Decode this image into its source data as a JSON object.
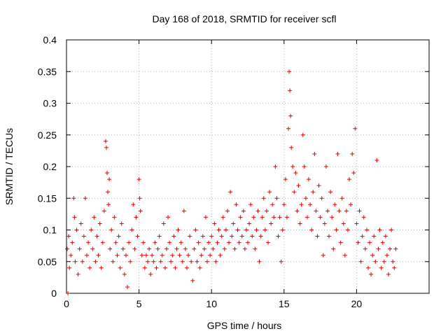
{
  "chart_data": {
    "type": "scatter",
    "title": "Day 168 of 2018, SRMTID for receiver scfl",
    "xlabel": "GPS time / hours",
    "ylabel": "SRMTID / TECUs",
    "xlim": [
      0,
      25
    ],
    "ylim": [
      0,
      0.4
    ],
    "xticks": [
      0,
      5,
      10,
      15,
      20
    ],
    "xtick_labels": [
      "0",
      "5",
      "10",
      "15",
      "20"
    ],
    "yticks": [
      0,
      0.05,
      0.1,
      0.15,
      0.2,
      0.25,
      0.3,
      0.35,
      0.4
    ],
    "ytick_labels": [
      "0",
      "0.05",
      "0.1",
      "0.15",
      "0.2",
      "0.25",
      "0.3",
      "0.35",
      "0.4"
    ],
    "grid": true,
    "marker": "+",
    "color": "#e00000",
    "series": [
      {
        "name": "SRMTID",
        "points": [
          [
            0.05,
            0.07
          ],
          [
            0.1,
            0.0
          ],
          [
            0.15,
            0.09
          ],
          [
            0.2,
            0.04
          ],
          [
            0.3,
            0.06
          ],
          [
            0.4,
            0.08
          ],
          [
            0.5,
            0.15
          ],
          [
            0.55,
            0.12
          ],
          [
            0.6,
            0.05
          ],
          [
            0.7,
            0.1
          ],
          [
            0.8,
            0.03
          ],
          [
            0.9,
            0.07
          ],
          [
            1.0,
            0.11
          ],
          [
            1.1,
            0.05
          ],
          [
            1.2,
            0.09
          ],
          [
            1.3,
            0.15
          ],
          [
            1.4,
            0.06
          ],
          [
            1.5,
            0.08
          ],
          [
            1.6,
            0.04
          ],
          [
            1.7,
            0.1
          ],
          [
            1.8,
            0.07
          ],
          [
            1.9,
            0.12
          ],
          [
            2.0,
            0.05
          ],
          [
            2.1,
            0.09
          ],
          [
            2.2,
            0.06
          ],
          [
            2.3,
            0.11
          ],
          [
            2.4,
            0.04
          ],
          [
            2.5,
            0.08
          ],
          [
            2.6,
            0.13
          ],
          [
            2.7,
            0.24
          ],
          [
            2.75,
            0.23
          ],
          [
            2.8,
            0.19
          ],
          [
            2.85,
            0.16
          ],
          [
            2.9,
            0.14
          ],
          [
            2.95,
            0.18
          ],
          [
            3.0,
            0.07
          ],
          [
            3.1,
            0.1
          ],
          [
            3.2,
            0.05
          ],
          [
            3.3,
            0.12
          ],
          [
            3.4,
            0.08
          ],
          [
            3.5,
            0.06
          ],
          [
            3.6,
            0.09
          ],
          [
            3.7,
            0.04
          ],
          [
            3.8,
            0.11
          ],
          [
            3.9,
            0.07
          ],
          [
            4.0,
            0.03
          ],
          [
            4.1,
            0.06
          ],
          [
            4.2,
            0.01
          ],
          [
            4.3,
            0.08
          ],
          [
            4.4,
            0.05
          ],
          [
            4.5,
            0.1
          ],
          [
            4.6,
            0.14
          ],
          [
            4.7,
            0.07
          ],
          [
            4.8,
            0.12
          ],
          [
            4.9,
            0.09
          ],
          [
            5.0,
            0.18
          ],
          [
            5.05,
            0.15
          ],
          [
            5.1,
            0.13
          ],
          [
            5.2,
            0.06
          ],
          [
            5.3,
            0.08
          ],
          [
            5.4,
            0.04
          ],
          [
            5.5,
            0.06
          ],
          [
            5.6,
            0.05
          ],
          [
            5.7,
            0.07
          ],
          [
            5.8,
            0.03
          ],
          [
            5.9,
            0.06
          ],
          [
            6.0,
            0.05
          ],
          [
            6.1,
            0.08
          ],
          [
            6.2,
            0.04
          ],
          [
            6.3,
            0.07
          ],
          [
            6.4,
            0.09
          ],
          [
            6.5,
            0.05
          ],
          [
            6.6,
            0.06
          ],
          [
            6.7,
            0.11
          ],
          [
            6.8,
            0.04
          ],
          [
            6.9,
            0.07
          ],
          [
            7.0,
            0.12
          ],
          [
            7.1,
            0.08
          ],
          [
            7.2,
            0.05
          ],
          [
            7.3,
            0.06
          ],
          [
            7.4,
            0.09
          ],
          [
            7.5,
            0.04
          ],
          [
            7.6,
            0.07
          ],
          [
            7.7,
            0.1
          ],
          [
            7.8,
            0.06
          ],
          [
            7.9,
            0.08
          ],
          [
            8.0,
            0.05
          ],
          [
            8.1,
            0.13
          ],
          [
            8.2,
            0.07
          ],
          [
            8.3,
            0.04
          ],
          [
            8.4,
            0.06
          ],
          [
            8.5,
            0.09
          ],
          [
            8.6,
            0.05
          ],
          [
            8.7,
            0.02
          ],
          [
            8.8,
            0.07
          ],
          [
            8.9,
            0.1
          ],
          [
            9.0,
            0.05
          ],
          [
            9.1,
            0.08
          ],
          [
            9.2,
            0.04
          ],
          [
            9.3,
            0.06
          ],
          [
            9.4,
            0.09
          ],
          [
            9.5,
            0.07
          ],
          [
            9.6,
            0.12
          ],
          [
            9.7,
            0.05
          ],
          [
            9.8,
            0.08
          ],
          [
            9.9,
            0.06
          ],
          [
            10.0,
            0.09
          ],
          [
            10.1,
            0.07
          ],
          [
            10.2,
            0.11
          ],
          [
            10.3,
            0.05
          ],
          [
            10.4,
            0.08
          ],
          [
            10.5,
            0.1
          ],
          [
            10.6,
            0.06
          ],
          [
            10.7,
            0.09
          ],
          [
            10.8,
            0.12
          ],
          [
            10.9,
            0.07
          ],
          [
            11.0,
            0.1
          ],
          [
            11.1,
            0.13
          ],
          [
            11.2,
            0.08
          ],
          [
            11.3,
            0.16
          ],
          [
            11.4,
            0.09
          ],
          [
            11.5,
            0.11
          ],
          [
            11.6,
            0.07
          ],
          [
            11.7,
            0.14
          ],
          [
            11.8,
            0.1
          ],
          [
            11.9,
            0.08
          ],
          [
            12.0,
            0.12
          ],
          [
            12.1,
            0.09
          ],
          [
            12.2,
            0.13
          ],
          [
            12.3,
            0.07
          ],
          [
            12.4,
            0.1
          ],
          [
            12.5,
            0.08
          ],
          [
            12.6,
            0.11
          ],
          [
            12.7,
            0.14
          ],
          [
            12.8,
            0.09
          ],
          [
            12.9,
            0.12
          ],
          [
            13.0,
            0.07
          ],
          [
            13.1,
            0.1
          ],
          [
            13.2,
            0.13
          ],
          [
            13.3,
            0.05
          ],
          [
            13.4,
            0.09
          ],
          [
            13.5,
            0.12
          ],
          [
            13.6,
            0.15
          ],
          [
            13.7,
            0.1
          ],
          [
            13.8,
            0.13
          ],
          [
            13.9,
            0.08
          ],
          [
            14.0,
            0.16
          ],
          [
            14.1,
            0.11
          ],
          [
            14.2,
            0.14
          ],
          [
            14.3,
            0.12
          ],
          [
            14.4,
            0.2
          ],
          [
            14.5,
            0.15
          ],
          [
            14.6,
            0.09
          ],
          [
            14.7,
            0.12
          ],
          [
            14.8,
            0.05
          ],
          [
            14.9,
            0.1
          ],
          [
            15.0,
            0.14
          ],
          [
            15.1,
            0.18
          ],
          [
            15.2,
            0.12
          ],
          [
            15.3,
            0.26
          ],
          [
            15.35,
            0.35
          ],
          [
            15.4,
            0.32
          ],
          [
            15.45,
            0.28
          ],
          [
            15.5,
            0.23
          ],
          [
            15.6,
            0.2
          ],
          [
            15.7,
            0.16
          ],
          [
            15.8,
            0.19
          ],
          [
            15.9,
            0.13
          ],
          [
            16.0,
            0.17
          ],
          [
            16.1,
            0.11
          ],
          [
            16.2,
            0.14
          ],
          [
            16.3,
            0.25
          ],
          [
            16.4,
            0.2
          ],
          [
            16.5,
            0.15
          ],
          [
            16.6,
            0.12
          ],
          [
            16.7,
            0.18
          ],
          [
            16.8,
            0.14
          ],
          [
            16.9,
            0.1
          ],
          [
            17.0,
            0.16
          ],
          [
            17.1,
            0.22
          ],
          [
            17.2,
            0.13
          ],
          [
            17.3,
            0.09
          ],
          [
            17.4,
            0.17
          ],
          [
            17.5,
            0.12
          ],
          [
            17.6,
            0.15
          ],
          [
            17.7,
            0.06
          ],
          [
            17.8,
            0.11
          ],
          [
            17.9,
            0.2
          ],
          [
            18.0,
            0.13
          ],
          [
            18.1,
            0.09
          ],
          [
            18.2,
            0.16
          ],
          [
            18.3,
            0.12
          ],
          [
            18.4,
            0.07
          ],
          [
            18.5,
            0.14
          ],
          [
            18.6,
            0.1
          ],
          [
            18.7,
            0.22
          ],
          [
            18.8,
            0.13
          ],
          [
            18.9,
            0.08
          ],
          [
            19.0,
            0.15
          ],
          [
            19.1,
            0.11
          ],
          [
            19.2,
            0.06
          ],
          [
            19.3,
            0.13
          ],
          [
            19.4,
            0.1
          ],
          [
            19.5,
            0.18
          ],
          [
            19.6,
            0.14
          ],
          [
            19.7,
            0.22
          ],
          [
            19.8,
            0.19
          ],
          [
            19.9,
            0.26
          ],
          [
            20.0,
            0.11
          ],
          [
            20.1,
            0.08
          ],
          [
            20.2,
            0.13
          ],
          [
            20.3,
            0.05
          ],
          [
            20.4,
            0.09
          ],
          [
            20.5,
            0.12
          ],
          [
            20.6,
            0.07
          ],
          [
            20.7,
            0.1
          ],
          [
            20.8,
            0.04
          ],
          [
            20.9,
            0.08
          ],
          [
            21.0,
            0.03
          ],
          [
            21.1,
            0.06
          ],
          [
            21.2,
            0.09
          ],
          [
            21.3,
            0.05
          ],
          [
            21.4,
            0.21
          ],
          [
            21.5,
            0.07
          ],
          [
            21.6,
            0.1
          ],
          [
            21.7,
            0.04
          ],
          [
            21.8,
            0.08
          ],
          [
            21.9,
            0.05
          ],
          [
            22.0,
            0.09
          ],
          [
            22.1,
            0.06
          ],
          [
            22.2,
            0.03
          ],
          [
            22.3,
            0.07
          ],
          [
            22.4,
            0.1
          ],
          [
            22.5,
            0.05
          ],
          [
            22.6,
            0.04
          ],
          [
            22.7,
            0.07
          ]
        ]
      }
    ]
  }
}
